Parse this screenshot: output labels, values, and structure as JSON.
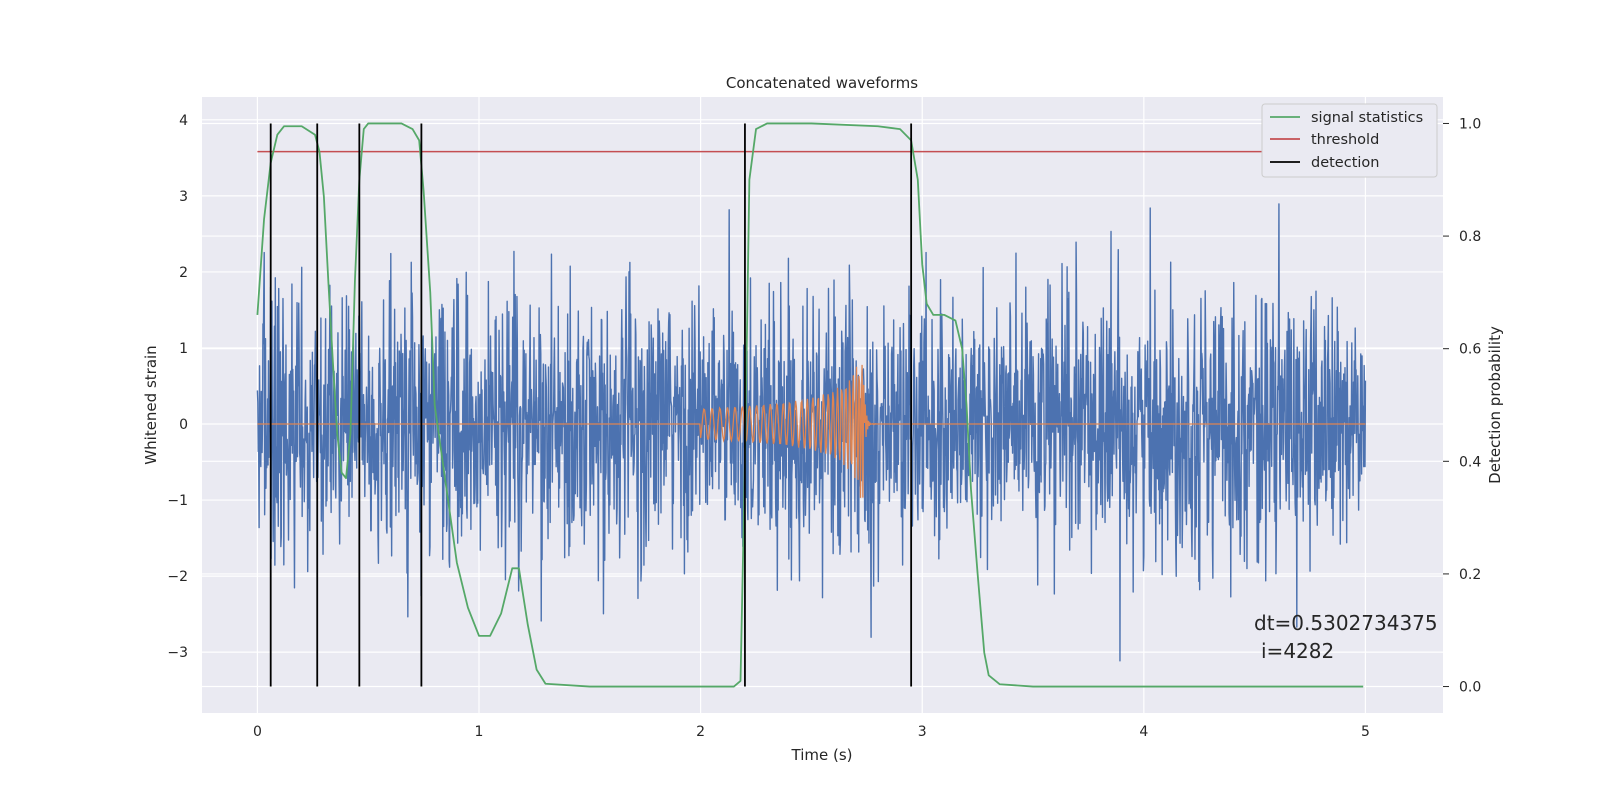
{
  "chart_data": {
    "type": "line",
    "title": "Concatenated waveforms",
    "xlabel": "Time (s)",
    "ylabel": "Whitened strain",
    "y2label": "Detection probability",
    "xlim": [
      -0.25,
      5.35
    ],
    "ylim": [
      -3.8,
      4.3
    ],
    "y2lim": [
      -0.047,
      1.047
    ],
    "xticks": [
      0,
      1,
      2,
      3,
      4,
      5
    ],
    "xtick_labels": [
      "0",
      "1",
      "2",
      "3",
      "4",
      "5"
    ],
    "yticks": [
      4,
      3,
      2,
      1,
      0,
      -1,
      -2,
      -3
    ],
    "ytick_labels": [
      "4",
      "3",
      "2",
      "1",
      "0",
      "−1",
      "−2",
      "−3"
    ],
    "y2ticks": [
      1.0,
      0.8,
      0.6,
      0.4,
      0.2,
      0.0
    ],
    "y2tick_labels": [
      "1.0",
      "0.8",
      "0.6",
      "0.4",
      "0.2",
      "0.0"
    ],
    "grid": true,
    "legend_position": "top-right",
    "colors": {
      "strain": "#4c72b0",
      "waveform": "#dd8452",
      "statistics": "#55a868",
      "threshold": "#c44e52",
      "detection": "#000000",
      "background": "#eaeaf2",
      "grid": "#ffffff"
    },
    "series": [
      {
        "name": "whitened strain",
        "axis": "left",
        "x_range": [
          0,
          5
        ],
        "envelope": "noise between -3.5 and 3.9"
      },
      {
        "name": "waveform",
        "axis": "left",
        "chirp_start": 2.0,
        "chirp_end": 2.74,
        "start_amplitude": 0.2,
        "peak_amplitude": 1.0
      },
      {
        "name": "signal statistics",
        "axis": "right",
        "x": [
          0.0,
          0.03,
          0.06,
          0.09,
          0.12,
          0.2,
          0.26,
          0.28,
          0.3,
          0.32,
          0.34,
          0.36,
          0.38,
          0.4,
          0.42,
          0.44,
          0.46,
          0.48,
          0.5,
          0.55,
          0.6,
          0.65,
          0.7,
          0.73,
          0.75,
          0.78,
          0.8,
          0.85,
          0.9,
          0.95,
          1.0,
          1.05,
          1.1,
          1.15,
          1.18,
          1.22,
          1.26,
          1.3,
          1.5,
          2.0,
          2.15,
          2.18,
          2.2,
          2.22,
          2.25,
          2.3,
          2.5,
          2.8,
          2.9,
          2.95,
          2.98,
          3.0,
          3.02,
          3.05,
          3.08,
          3.1,
          3.15,
          3.18,
          3.2,
          3.22,
          3.25,
          3.28,
          3.3,
          3.35,
          3.5,
          4.0,
          4.5,
          4.99
        ],
        "values": [
          0.66,
          0.83,
          0.93,
          0.98,
          0.995,
          0.995,
          0.98,
          0.95,
          0.87,
          0.72,
          0.58,
          0.45,
          0.38,
          0.37,
          0.45,
          0.72,
          0.9,
          0.99,
          1.0,
          1.0,
          1.0,
          1.0,
          0.99,
          0.97,
          0.88,
          0.7,
          0.5,
          0.36,
          0.22,
          0.14,
          0.09,
          0.09,
          0.13,
          0.21,
          0.21,
          0.11,
          0.03,
          0.005,
          0.0,
          0.0,
          0.0,
          0.01,
          0.4,
          0.9,
          0.99,
          1.0,
          1.0,
          0.995,
          0.99,
          0.97,
          0.9,
          0.75,
          0.68,
          0.66,
          0.66,
          0.66,
          0.65,
          0.6,
          0.5,
          0.35,
          0.2,
          0.06,
          0.02,
          0.004,
          0.0,
          0.0,
          0.0,
          0.0
        ]
      },
      {
        "name": "threshold",
        "axis": "right",
        "x": [
          0.0,
          4.99
        ],
        "values": [
          0.95,
          0.95
        ]
      }
    ],
    "detections": [
      0.06,
      0.27,
      0.46,
      0.74,
      2.2,
      2.95
    ],
    "legend": [
      "signal statistics",
      "threshold",
      "detection"
    ],
    "annotation_lines": [
      "dt=0.5302734375",
      "i=4282"
    ]
  }
}
